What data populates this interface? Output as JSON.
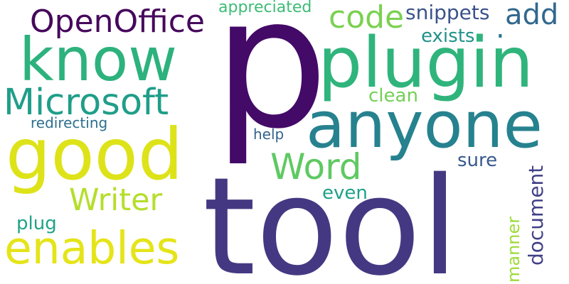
{
  "words": {
    "p": {
      "text": "p",
      "color": "#440a68"
    },
    "tool": {
      "text": "tool",
      "color": "#453882"
    },
    "plugin": {
      "text": "plugin",
      "color": "#2fb47c"
    },
    "anyone": {
      "text": "anyone",
      "color": "#26828e"
    },
    "know": {
      "text": "know",
      "color": "#2db27d"
    },
    "good": {
      "text": "good",
      "color": "#dde318"
    },
    "microsoft": {
      "text": "Microsoft",
      "color": "#1f9e89"
    },
    "enables": {
      "text": "enables",
      "color": "#e5e419"
    },
    "openoffice": {
      "text": "OpenOffice",
      "color": "#46085c"
    },
    "word": {
      "text": "Word",
      "color": "#5ec962"
    },
    "code": {
      "text": "code",
      "color": "#7ad151"
    },
    "add": {
      "text": "add",
      "color": "#31688e"
    },
    "writer": {
      "text": "Writer",
      "color": "#b5de2b"
    },
    "snippets": {
      "text": "snippets",
      "color": "#3b528b"
    },
    "appreciated": {
      "text": "appreciated",
      "color": "#3cbc75"
    },
    "exists": {
      "text": "exists",
      "color": "#21918c"
    },
    "dot": {
      "text": ".",
      "color": "#2a788e"
    },
    "clean": {
      "text": "clean",
      "color": "#73d056"
    },
    "redirecting": {
      "text": "redirecting",
      "color": "#2d708e"
    },
    "help": {
      "text": "help",
      "color": "#33638d"
    },
    "sure": {
      "text": "sure",
      "color": "#38588c"
    },
    "even": {
      "text": "even",
      "color": "#1fa088"
    },
    "plug": {
      "text": "plug",
      "color": "#20a386"
    },
    "document": {
      "text": "document",
      "color": "#424086"
    },
    "manner": {
      "text": "manner",
      "color": "#9fda3a"
    }
  }
}
